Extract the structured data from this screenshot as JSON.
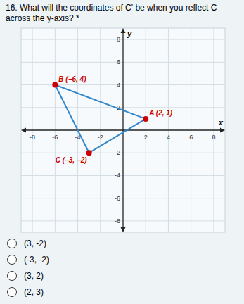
{
  "chart_data": {
    "type": "scatter",
    "title": "16. What will the coordinates of C' be when you reflect C across the y-axis?  *",
    "x_label": "x",
    "y_label": "y",
    "xlim": [
      -9,
      9
    ],
    "ylim": [
      -9,
      9
    ],
    "xticks": [
      -8,
      -6,
      -4,
      -2,
      2,
      4,
      6,
      8
    ],
    "yticks": [
      -8,
      -6,
      -4,
      -2,
      2,
      4,
      6,
      8
    ],
    "grid": true,
    "series": [
      {
        "type": "polygon",
        "color": "#3388cc",
        "x": [
          -6,
          2,
          -3
        ],
        "values": [
          4,
          1,
          -2
        ]
      },
      {
        "type": "scatter",
        "color": "#cc0000",
        "marker": "circle",
        "x": [
          -6,
          2,
          -3
        ],
        "values": [
          4,
          1,
          -2
        ]
      }
    ],
    "annotations": [
      {
        "text": "B (−6, 4)",
        "x": -6,
        "y": 4
      },
      {
        "text": "A (2, 1)",
        "x": 2,
        "y": 1
      },
      {
        "text": "C (−3, −2)",
        "x": -3,
        "y": -2
      }
    ],
    "choices": [
      "(3, -2)",
      "(-3, -2)",
      "(3, 2)",
      "(2, 3)"
    ]
  }
}
